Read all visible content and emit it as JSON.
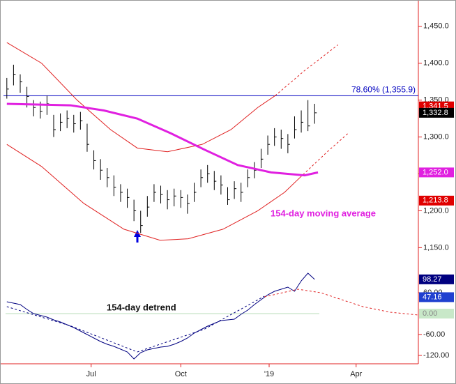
{
  "chart_data": {
    "type": "price-bars",
    "xlim": [
      0,
      62
    ],
    "xticks": [
      {
        "value": 13.1,
        "label": "Jul"
      },
      {
        "value": 26.5,
        "label": "Oct"
      },
      {
        "value": 39.7,
        "label": "'19"
      },
      {
        "value": 52.7,
        "label": "Apr"
      }
    ],
    "ylim": [
      1122,
      1481
    ],
    "yticks": [
      {
        "value": 1450,
        "label": "1,450.0"
      },
      {
        "value": 1400,
        "label": "1,400.0"
      },
      {
        "value": 1350,
        "label": "1,350.0"
      },
      {
        "value": 1300,
        "label": "1,300.0"
      },
      {
        "value": 1250,
        "label": "1,250.0"
      },
      {
        "value": 1200,
        "label": "1,200.0"
      },
      {
        "value": 1150,
        "label": "1,150.0"
      }
    ],
    "x": [
      0.5,
      1.5,
      2.5,
      3.5,
      4.5,
      5.5,
      6.5,
      7.5,
      8.5,
      9.5,
      10.5,
      11.5,
      12.5,
      13.5,
      14.5,
      15.5,
      16.5,
      17.5,
      18.5,
      19.5,
      20.5,
      21.5,
      22.5,
      23.5,
      24.5,
      25.5,
      26.5,
      27.5,
      28.5,
      29.5,
      30.5,
      31.5,
      32.5,
      33.5,
      34.5,
      35.5,
      36.5,
      37.5,
      38.5,
      39.5,
      40.5,
      41.5,
      42.5,
      43.5,
      44.5,
      45.5,
      46.5
    ],
    "price": {
      "color": "#000000",
      "high": [
        1380,
        1398,
        1385,
        1368,
        1350,
        1348,
        1356,
        1330,
        1332,
        1336,
        1330,
        1334,
        1318,
        1282,
        1270,
        1258,
        1248,
        1236,
        1230,
        1215,
        1200,
        1220,
        1236,
        1234,
        1228,
        1230,
        1228,
        1222,
        1238,
        1256,
        1262,
        1254,
        1248,
        1232,
        1240,
        1238,
        1256,
        1266,
        1284,
        1302,
        1312,
        1310,
        1304,
        1328,
        1336,
        1350,
        1345
      ],
      "low": [
        1352,
        1370,
        1360,
        1340,
        1328,
        1325,
        1330,
        1300,
        1308,
        1312,
        1306,
        1310,
        1280,
        1256,
        1242,
        1232,
        1220,
        1212,
        1204,
        1186,
        1170,
        1192,
        1212,
        1210,
        1202,
        1206,
        1204,
        1196,
        1212,
        1232,
        1238,
        1228,
        1222,
        1208,
        1216,
        1212,
        1232,
        1244,
        1258,
        1276,
        1288,
        1284,
        1278,
        1298,
        1306,
        1308,
        1318
      ],
      "close": [
        1365,
        1385,
        1375,
        1355,
        1340,
        1335,
        1345,
        1310,
        1320,
        1325,
        1318,
        1322,
        1290,
        1268,
        1255,
        1245,
        1232,
        1225,
        1218,
        1200,
        1180,
        1205,
        1225,
        1222,
        1215,
        1220,
        1218,
        1210,
        1225,
        1245,
        1250,
        1240,
        1235,
        1215,
        1230,
        1225,
        1245,
        1255,
        1270,
        1290,
        1300,
        1298,
        1290,
        1310,
        1320,
        1315,
        1332.8
      ]
    },
    "moving_average": {
      "color": "#e020e0",
      "x": [
        0.5,
        5,
        10,
        15,
        20,
        25,
        30,
        35,
        40,
        45,
        47
      ],
      "values": [
        1345,
        1344,
        1343,
        1336,
        1325,
        1305,
        1283,
        1262,
        1252,
        1248,
        1252
      ]
    },
    "upper_band": {
      "color": "#e02020",
      "x": [
        0.5,
        5.7,
        11,
        16,
        20,
        24.5,
        29.7,
        34,
        38,
        40.6
      ],
      "values": [
        1428,
        1400,
        1350,
        1310,
        1285,
        1280,
        1290,
        1310,
        1340,
        1356
      ]
    },
    "upper_projection": {
      "color": "#e02020",
      "x": [
        40.6,
        45,
        50
      ],
      "values": [
        1356,
        1390,
        1425
      ]
    },
    "lower_band": {
      "color": "#e02020",
      "x": [
        0.5,
        5.7,
        12,
        18,
        23.4,
        27.6,
        32.8,
        38,
        42,
        44.3
      ],
      "values": [
        1290,
        1260,
        1210,
        1175,
        1160,
        1162,
        1175,
        1200,
        1225,
        1245
      ]
    },
    "lower_projection": {
      "color": "#e02020",
      "x": [
        44.3,
        48.4,
        51.5
      ],
      "values": [
        1245,
        1280,
        1305
      ]
    },
    "retracement": {
      "value": 1355.9,
      "label": "78.60% (1,355.9)",
      "color": "#0000c0"
    },
    "axis_labels": [
      {
        "value": 1341.5,
        "label": "1,341.5",
        "color": "#e00000",
        "text_color": "#ffffff"
      },
      {
        "value": 1332.8,
        "label": "1,332.8",
        "color": "#000000",
        "text_color": "#ffffff"
      },
      {
        "value": 1252.0,
        "label": "1,252.0",
        "color": "#e020e0",
        "text_color": "#ffffff"
      },
      {
        "value": 1213.8,
        "label": "1,213.8",
        "color": "#e00000",
        "text_color": "#ffffff"
      }
    ],
    "ma_annotation": "154-day moving average",
    "detrend": {
      "annotation": "154-day detrend",
      "ylim": [
        -144,
        120
      ],
      "yticks": [
        {
          "value": 60,
          "label": "60.00"
        },
        {
          "value": -60,
          "label": "-60.00"
        },
        {
          "value": -120,
          "label": "-120.00"
        }
      ],
      "color": "#000080",
      "values": [
        34,
        30,
        26,
        12,
        0,
        -5,
        -10,
        -18,
        -24,
        -32,
        -40,
        -50,
        -60,
        -70,
        -80,
        -88,
        -94,
        -102,
        -110,
        -130,
        -112,
        -104,
        -100,
        -96,
        -94,
        -88,
        -80,
        -70,
        -56,
        -46,
        -36,
        -28,
        -20,
        -18,
        -16,
        -2,
        10,
        26,
        40,
        54,
        64,
        70,
        76,
        64,
        94,
        116,
        98.27
      ],
      "trend": {
        "color": "#000080",
        "x": [
          0.5,
          10,
          20,
          30,
          39
        ],
        "values": [
          20,
          -35,
          -110,
          -45,
          50
        ]
      },
      "projection": {
        "color": "#e02020",
        "x": [
          39,
          44,
          47.4,
          53.7,
          57.8,
          62
        ],
        "values": [
          48,
          70,
          60,
          20,
          4,
          -4
        ]
      },
      "zero_line": {
        "value": 0,
        "color": "#b8dcb8"
      },
      "axis_labels": [
        {
          "value": 98.27,
          "label": "98.27",
          "color": "#000080",
          "text_color": "#ffffff"
        },
        {
          "value": 47.16,
          "label": "47.16",
          "color": "#2040d0",
          "text_color": "#ffffff"
        },
        {
          "value": 0,
          "label": "0.00",
          "color": "#c8e8c8",
          "text_color": "#888888"
        }
      ]
    }
  }
}
